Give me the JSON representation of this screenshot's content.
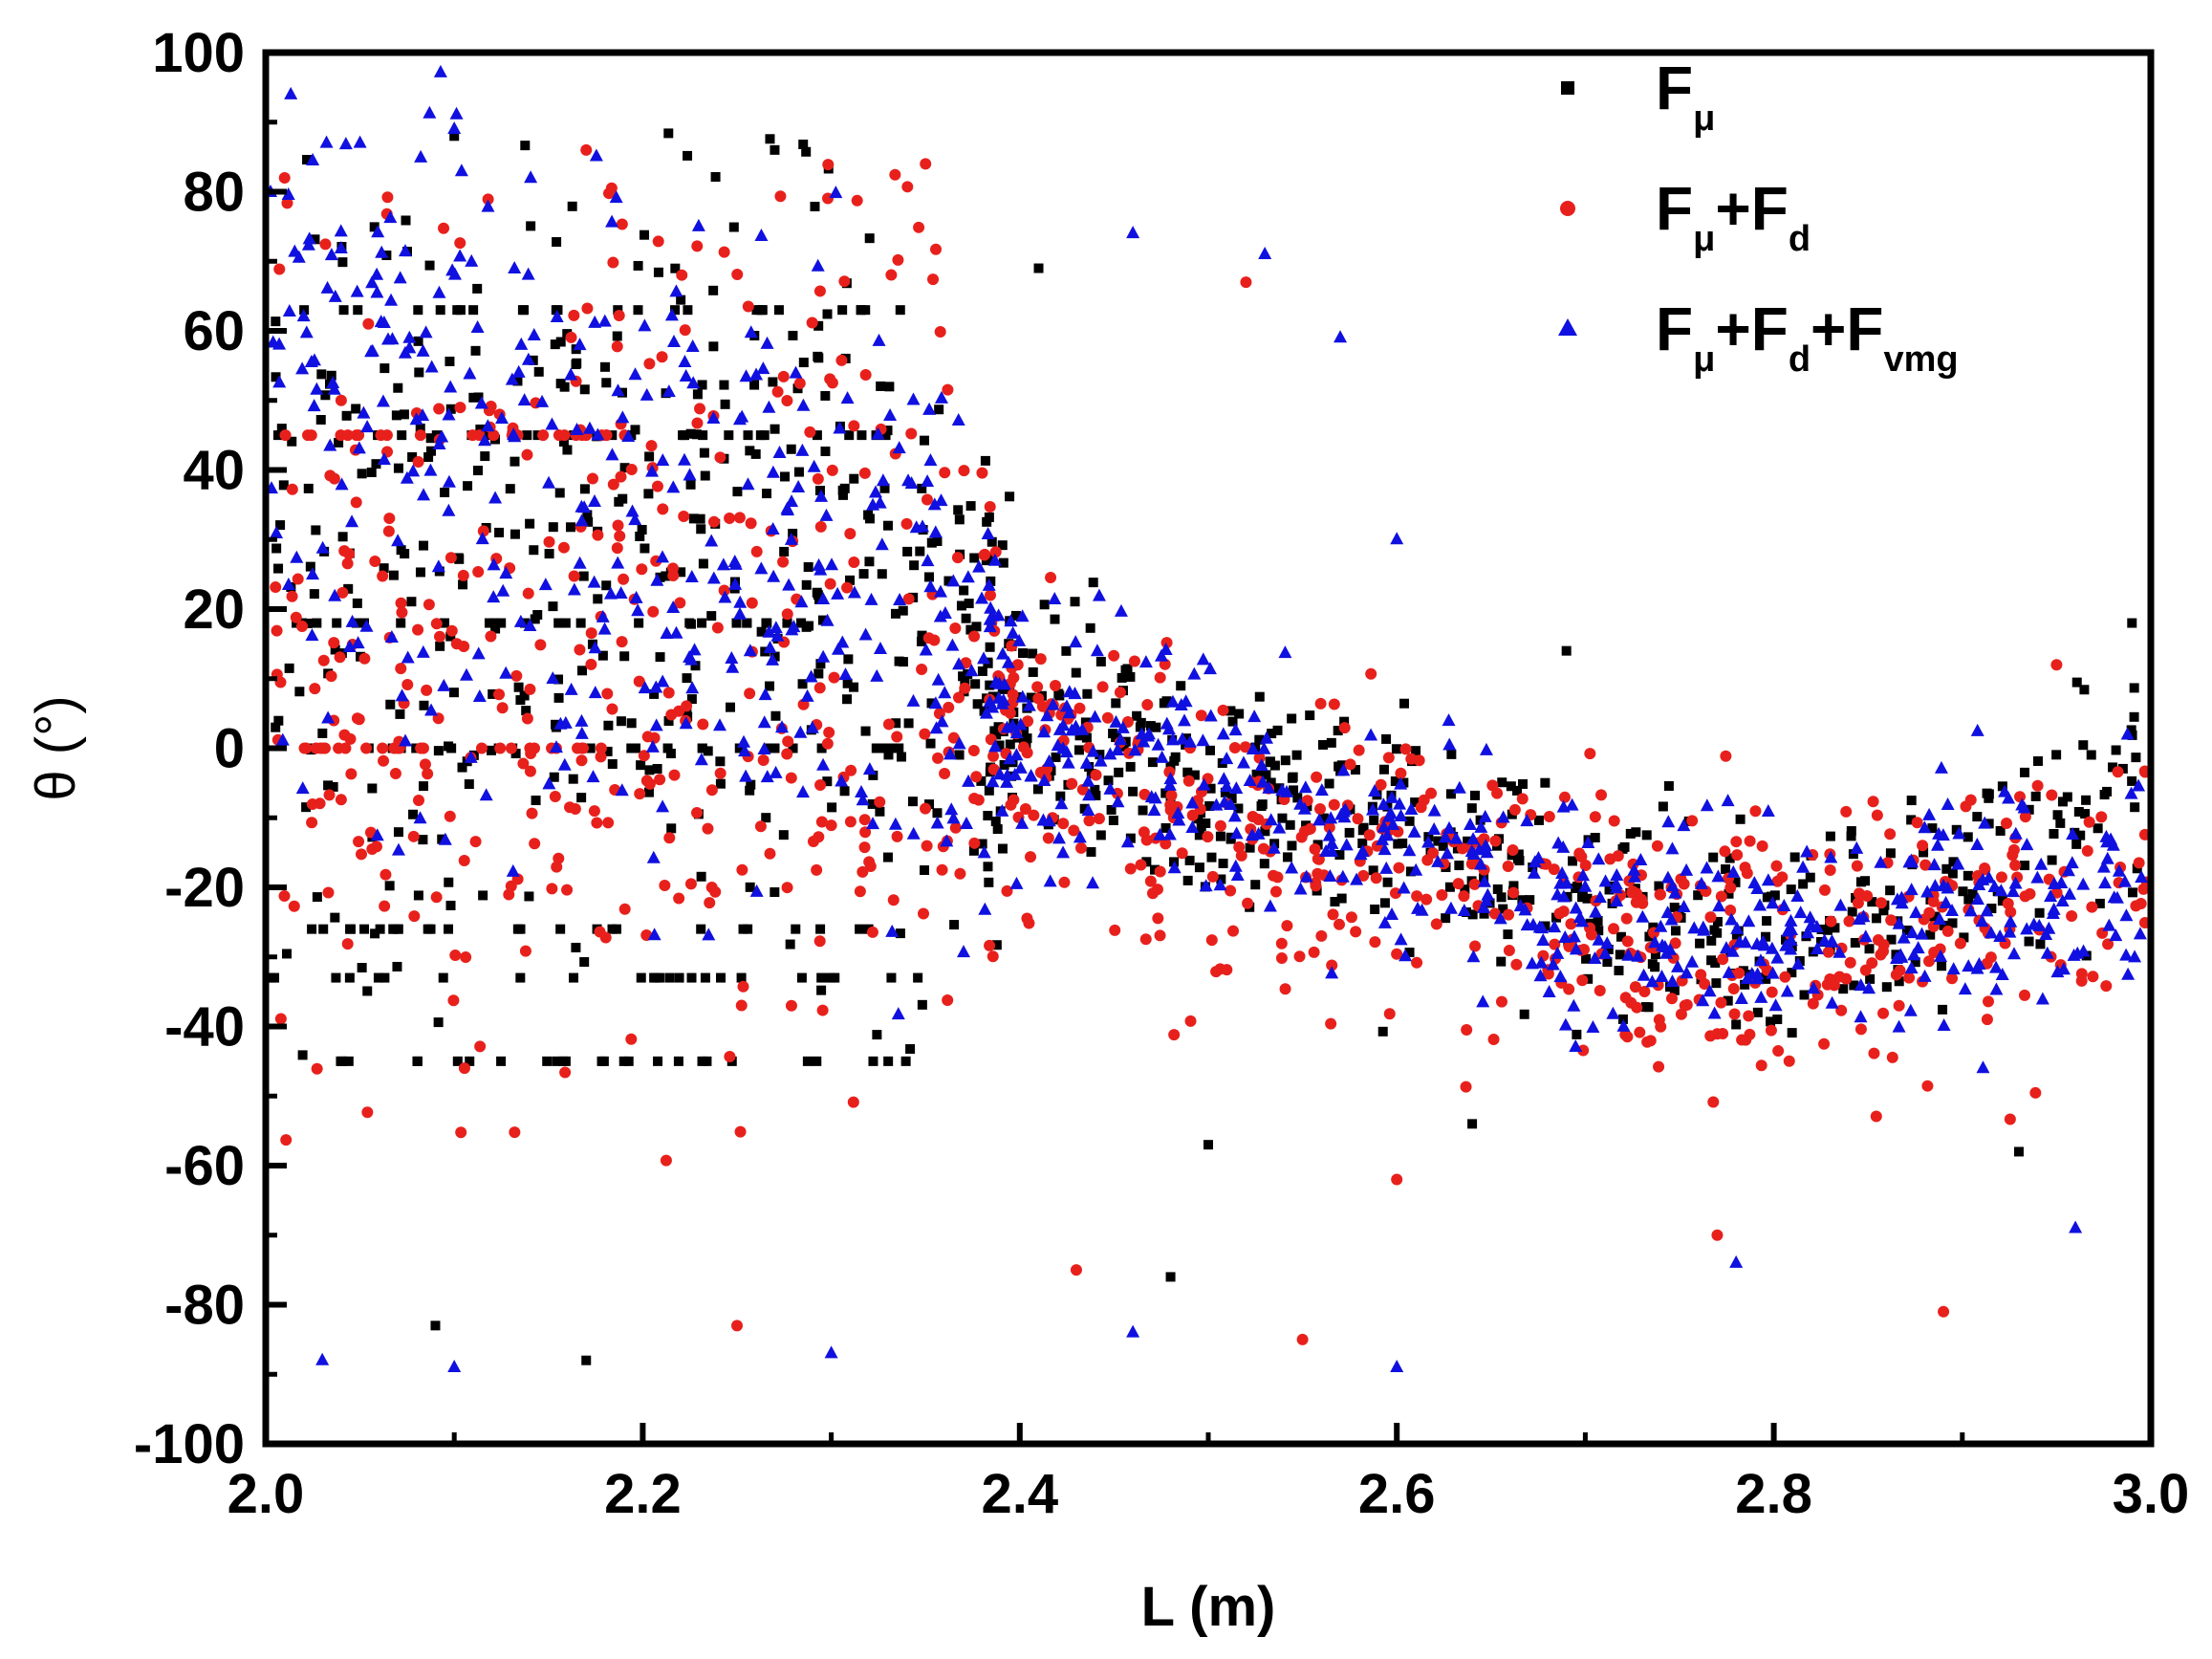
{
  "chart_data": {
    "type": "scatter",
    "title": "",
    "xlabel": "L (m)",
    "ylabel": "θ (°)",
    "xlim": [
      2.0,
      3.0
    ],
    "ylim": [
      -100,
      100
    ],
    "x_ticks": [
      "2.0",
      "2.2",
      "2.4",
      "2.6",
      "2.8",
      "3.0"
    ],
    "y_ticks": [
      "100",
      "80",
      "60",
      "40",
      "20",
      "0",
      "-20",
      "-40",
      "-60",
      "-80",
      "-100"
    ],
    "legend_position": "top-right",
    "series": [
      {
        "name": "Fμ",
        "label_base": "F",
        "label_sub": "μ",
        "color": "#000000",
        "marker": "square",
        "trend": [
          [
            2.0,
            20
          ],
          [
            2.15,
            25
          ],
          [
            2.3,
            25
          ],
          [
            2.4,
            5
          ],
          [
            2.5,
            -5
          ],
          [
            2.6,
            -10
          ],
          [
            2.7,
            -22
          ],
          [
            2.8,
            -28
          ],
          [
            2.9,
            -22
          ],
          [
            2.97,
            -8
          ],
          [
            3.0,
            -5
          ]
        ],
        "spread": [
          [
            2.0,
            50
          ],
          [
            2.35,
            50
          ],
          [
            2.4,
            12
          ],
          [
            2.6,
            10
          ],
          [
            2.7,
            10
          ],
          [
            3.0,
            10
          ]
        ],
        "count": 900,
        "bands": [
          63,
          45,
          18,
          0,
          -26,
          -33,
          -45
        ],
        "band_range": [
          2.0,
          2.35
        ],
        "outliers": [
          [
            2.27,
            86
          ],
          [
            2.1,
            88
          ],
          [
            2.17,
            -88
          ],
          [
            2.48,
            -76
          ],
          [
            2.5,
            -57
          ],
          [
            2.64,
            -54
          ],
          [
            2.69,
            14
          ],
          [
            2.99,
            18
          ],
          [
            2.93,
            -58
          ],
          [
            2.41,
            69
          ],
          [
            2.09,
            -83
          ]
        ]
      },
      {
        "name": "Fμ+Fd",
        "label_base": "F",
        "label_sub": "μ",
        "label_mid": "+F",
        "label_sub2": "d",
        "color": "#e8201c",
        "marker": "circle",
        "trend": [
          [
            2.0,
            10
          ],
          [
            2.1,
            15
          ],
          [
            2.2,
            10
          ],
          [
            2.3,
            20
          ],
          [
            2.4,
            0
          ],
          [
            2.5,
            -10
          ],
          [
            2.6,
            -15
          ],
          [
            2.7,
            -25
          ],
          [
            2.8,
            -30
          ],
          [
            2.9,
            -25
          ],
          [
            3.0,
            -15
          ]
        ],
        "spread": [
          [
            2.0,
            55
          ],
          [
            2.35,
            55
          ],
          [
            2.4,
            15
          ],
          [
            2.6,
            12
          ],
          [
            2.7,
            12
          ],
          [
            3.0,
            12
          ]
        ],
        "count": 900,
        "bands": [
          45,
          0
        ],
        "band_range": [
          2.0,
          2.2
        ],
        "outliers": [
          [
            2.01,
            82
          ],
          [
            2.17,
            86
          ],
          [
            2.35,
            84
          ],
          [
            2.55,
            -85
          ],
          [
            2.89,
            -81
          ],
          [
            2.6,
            -62
          ],
          [
            2.52,
            67
          ],
          [
            2.25,
            -83
          ],
          [
            2.43,
            -75
          ],
          [
            2.95,
            12
          ],
          [
            2.77,
            -70
          ]
        ]
      },
      {
        "name": "Fμ+Fd+Fvmg",
        "label_base": "F",
        "label_sub": "μ",
        "label_mid": "+F",
        "label_sub2": "d",
        "label_mid2": "+F",
        "label_sub3": "vmg",
        "color": "#1010e0",
        "marker": "triangle",
        "trend": [
          [
            2.0,
            50
          ],
          [
            2.1,
            40
          ],
          [
            2.2,
            30
          ],
          [
            2.3,
            25
          ],
          [
            2.4,
            3
          ],
          [
            2.5,
            -5
          ],
          [
            2.6,
            -12
          ],
          [
            2.7,
            -25
          ],
          [
            2.8,
            -28
          ],
          [
            2.9,
            -22
          ],
          [
            3.0,
            -20
          ]
        ],
        "spread": [
          [
            2.0,
            45
          ],
          [
            2.35,
            45
          ],
          [
            2.4,
            12
          ],
          [
            2.6,
            10
          ],
          [
            2.7,
            10
          ],
          [
            3.0,
            10
          ]
        ],
        "count": 900,
        "bands": [],
        "band_range": [
          2.0,
          2.0
        ],
        "outliers": [
          [
            2.1,
            89
          ],
          [
            2.05,
            87
          ],
          [
            2.46,
            74
          ],
          [
            2.53,
            71
          ],
          [
            2.57,
            59
          ],
          [
            2.6,
            30
          ],
          [
            2.6,
            -89
          ],
          [
            2.46,
            -84
          ],
          [
            2.1,
            -89
          ],
          [
            2.03,
            -88
          ],
          [
            2.78,
            -74
          ],
          [
            2.96,
            -69
          ],
          [
            2.3,
            -87
          ]
        ]
      }
    ]
  }
}
